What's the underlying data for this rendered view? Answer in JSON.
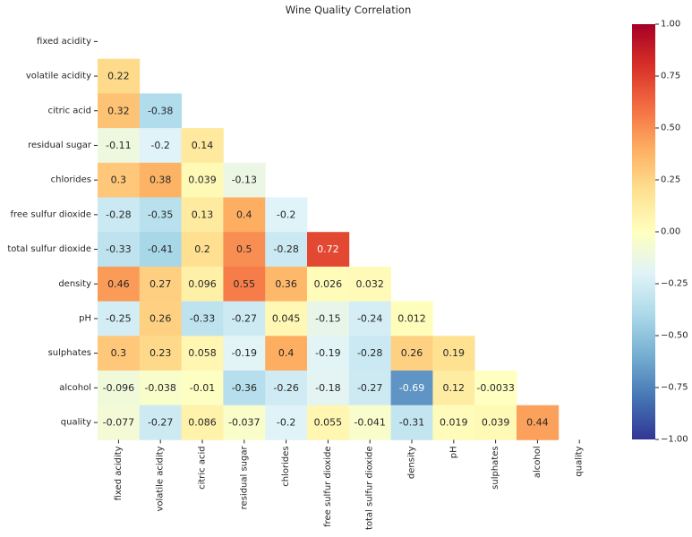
{
  "chart_data": {
    "type": "heatmap",
    "title": "Wine Quality Correlation",
    "labels": [
      "fixed acidity",
      "volatile acidity",
      "citric acid",
      "residual sugar",
      "chlorides",
      "free sulfur dioxide",
      "total sulfur dioxide",
      "density",
      "pH",
      "sulphates",
      "alcohol",
      "quality"
    ],
    "mask": "upper-triangle-and-diagonal",
    "cells": [
      {
        "row": 1,
        "col": 0,
        "value": 0.22,
        "label": "0.22"
      },
      {
        "row": 2,
        "col": 0,
        "value": 0.32,
        "label": "0.32"
      },
      {
        "row": 2,
        "col": 1,
        "value": -0.38,
        "label": "-0.38"
      },
      {
        "row": 3,
        "col": 0,
        "value": -0.11,
        "label": "-0.11"
      },
      {
        "row": 3,
        "col": 1,
        "value": -0.2,
        "label": "-0.2"
      },
      {
        "row": 3,
        "col": 2,
        "value": 0.14,
        "label": "0.14"
      },
      {
        "row": 4,
        "col": 0,
        "value": 0.3,
        "label": "0.3"
      },
      {
        "row": 4,
        "col": 1,
        "value": 0.38,
        "label": "0.38"
      },
      {
        "row": 4,
        "col": 2,
        "value": 0.039,
        "label": "0.039"
      },
      {
        "row": 4,
        "col": 3,
        "value": -0.13,
        "label": "-0.13"
      },
      {
        "row": 5,
        "col": 0,
        "value": -0.28,
        "label": "-0.28"
      },
      {
        "row": 5,
        "col": 1,
        "value": -0.35,
        "label": "-0.35"
      },
      {
        "row": 5,
        "col": 2,
        "value": 0.13,
        "label": "0.13"
      },
      {
        "row": 5,
        "col": 3,
        "value": 0.4,
        "label": "0.4"
      },
      {
        "row": 5,
        "col": 4,
        "value": -0.2,
        "label": "-0.2"
      },
      {
        "row": 6,
        "col": 0,
        "value": -0.33,
        "label": "-0.33"
      },
      {
        "row": 6,
        "col": 1,
        "value": -0.41,
        "label": "-0.41"
      },
      {
        "row": 6,
        "col": 2,
        "value": 0.2,
        "label": "0.2"
      },
      {
        "row": 6,
        "col": 3,
        "value": 0.5,
        "label": "0.5"
      },
      {
        "row": 6,
        "col": 4,
        "value": -0.28,
        "label": "-0.28"
      },
      {
        "row": 6,
        "col": 5,
        "value": 0.72,
        "label": "0.72"
      },
      {
        "row": 7,
        "col": 0,
        "value": 0.46,
        "label": "0.46"
      },
      {
        "row": 7,
        "col": 1,
        "value": 0.27,
        "label": "0.27"
      },
      {
        "row": 7,
        "col": 2,
        "value": 0.096,
        "label": "0.096"
      },
      {
        "row": 7,
        "col": 3,
        "value": 0.55,
        "label": "0.55"
      },
      {
        "row": 7,
        "col": 4,
        "value": 0.36,
        "label": "0.36"
      },
      {
        "row": 7,
        "col": 5,
        "value": 0.026,
        "label": "0.026"
      },
      {
        "row": 7,
        "col": 6,
        "value": 0.032,
        "label": "0.032"
      },
      {
        "row": 8,
        "col": 0,
        "value": -0.25,
        "label": "-0.25"
      },
      {
        "row": 8,
        "col": 1,
        "value": 0.26,
        "label": "0.26"
      },
      {
        "row": 8,
        "col": 2,
        "value": -0.33,
        "label": "-0.33"
      },
      {
        "row": 8,
        "col": 3,
        "value": -0.27,
        "label": "-0.27"
      },
      {
        "row": 8,
        "col": 4,
        "value": 0.045,
        "label": "0.045"
      },
      {
        "row": 8,
        "col": 5,
        "value": -0.15,
        "label": "-0.15"
      },
      {
        "row": 8,
        "col": 6,
        "value": -0.24,
        "label": "-0.24"
      },
      {
        "row": 8,
        "col": 7,
        "value": 0.012,
        "label": "0.012"
      },
      {
        "row": 9,
        "col": 0,
        "value": 0.3,
        "label": "0.3"
      },
      {
        "row": 9,
        "col": 1,
        "value": 0.23,
        "label": "0.23"
      },
      {
        "row": 9,
        "col": 2,
        "value": 0.058,
        "label": "0.058"
      },
      {
        "row": 9,
        "col": 3,
        "value": -0.19,
        "label": "-0.19"
      },
      {
        "row": 9,
        "col": 4,
        "value": 0.4,
        "label": "0.4"
      },
      {
        "row": 9,
        "col": 5,
        "value": -0.19,
        "label": "-0.19"
      },
      {
        "row": 9,
        "col": 6,
        "value": -0.28,
        "label": "-0.28"
      },
      {
        "row": 9,
        "col": 7,
        "value": 0.26,
        "label": "0.26"
      },
      {
        "row": 9,
        "col": 8,
        "value": 0.19,
        "label": "0.19"
      },
      {
        "row": 10,
        "col": 0,
        "value": -0.096,
        "label": "-0.096"
      },
      {
        "row": 10,
        "col": 1,
        "value": -0.038,
        "label": "-0.038"
      },
      {
        "row": 10,
        "col": 2,
        "value": -0.01,
        "label": "-0.01"
      },
      {
        "row": 10,
        "col": 3,
        "value": -0.36,
        "label": "-0.36"
      },
      {
        "row": 10,
        "col": 4,
        "value": -0.26,
        "label": "-0.26"
      },
      {
        "row": 10,
        "col": 5,
        "value": -0.18,
        "label": "-0.18"
      },
      {
        "row": 10,
        "col": 6,
        "value": -0.27,
        "label": "-0.27"
      },
      {
        "row": 10,
        "col": 7,
        "value": -0.69,
        "label": "-0.69"
      },
      {
        "row": 10,
        "col": 8,
        "value": 0.12,
        "label": "0.12"
      },
      {
        "row": 10,
        "col": 9,
        "value": -0.0033,
        "label": "-0.0033"
      },
      {
        "row": 11,
        "col": 0,
        "value": -0.077,
        "label": "-0.077"
      },
      {
        "row": 11,
        "col": 1,
        "value": -0.27,
        "label": "-0.27"
      },
      {
        "row": 11,
        "col": 2,
        "value": 0.086,
        "label": "0.086"
      },
      {
        "row": 11,
        "col": 3,
        "value": -0.037,
        "label": "-0.037"
      },
      {
        "row": 11,
        "col": 4,
        "value": -0.2,
        "label": "-0.2"
      },
      {
        "row": 11,
        "col": 5,
        "value": 0.055,
        "label": "0.055"
      },
      {
        "row": 11,
        "col": 6,
        "value": -0.041,
        "label": "-0.041"
      },
      {
        "row": 11,
        "col": 7,
        "value": -0.31,
        "label": "-0.31"
      },
      {
        "row": 11,
        "col": 8,
        "value": 0.019,
        "label": "0.019"
      },
      {
        "row": 11,
        "col": 9,
        "value": 0.039,
        "label": "0.039"
      },
      {
        "row": 11,
        "col": 10,
        "value": 0.44,
        "label": "0.44"
      }
    ],
    "colorbar": {
      "colormap": "RdYlBu_r",
      "vmin": -1.0,
      "vmax": 1.0,
      "ticks": [
        1.0,
        0.75,
        0.5,
        0.25,
        0.0,
        -0.25,
        -0.5,
        -0.75,
        -1.0
      ],
      "tick_labels": [
        "1.00",
        "0.75",
        "0.50",
        "0.25",
        "0.00",
        "−0.25",
        "−0.50",
        "−0.75",
        "−1.00"
      ]
    }
  }
}
